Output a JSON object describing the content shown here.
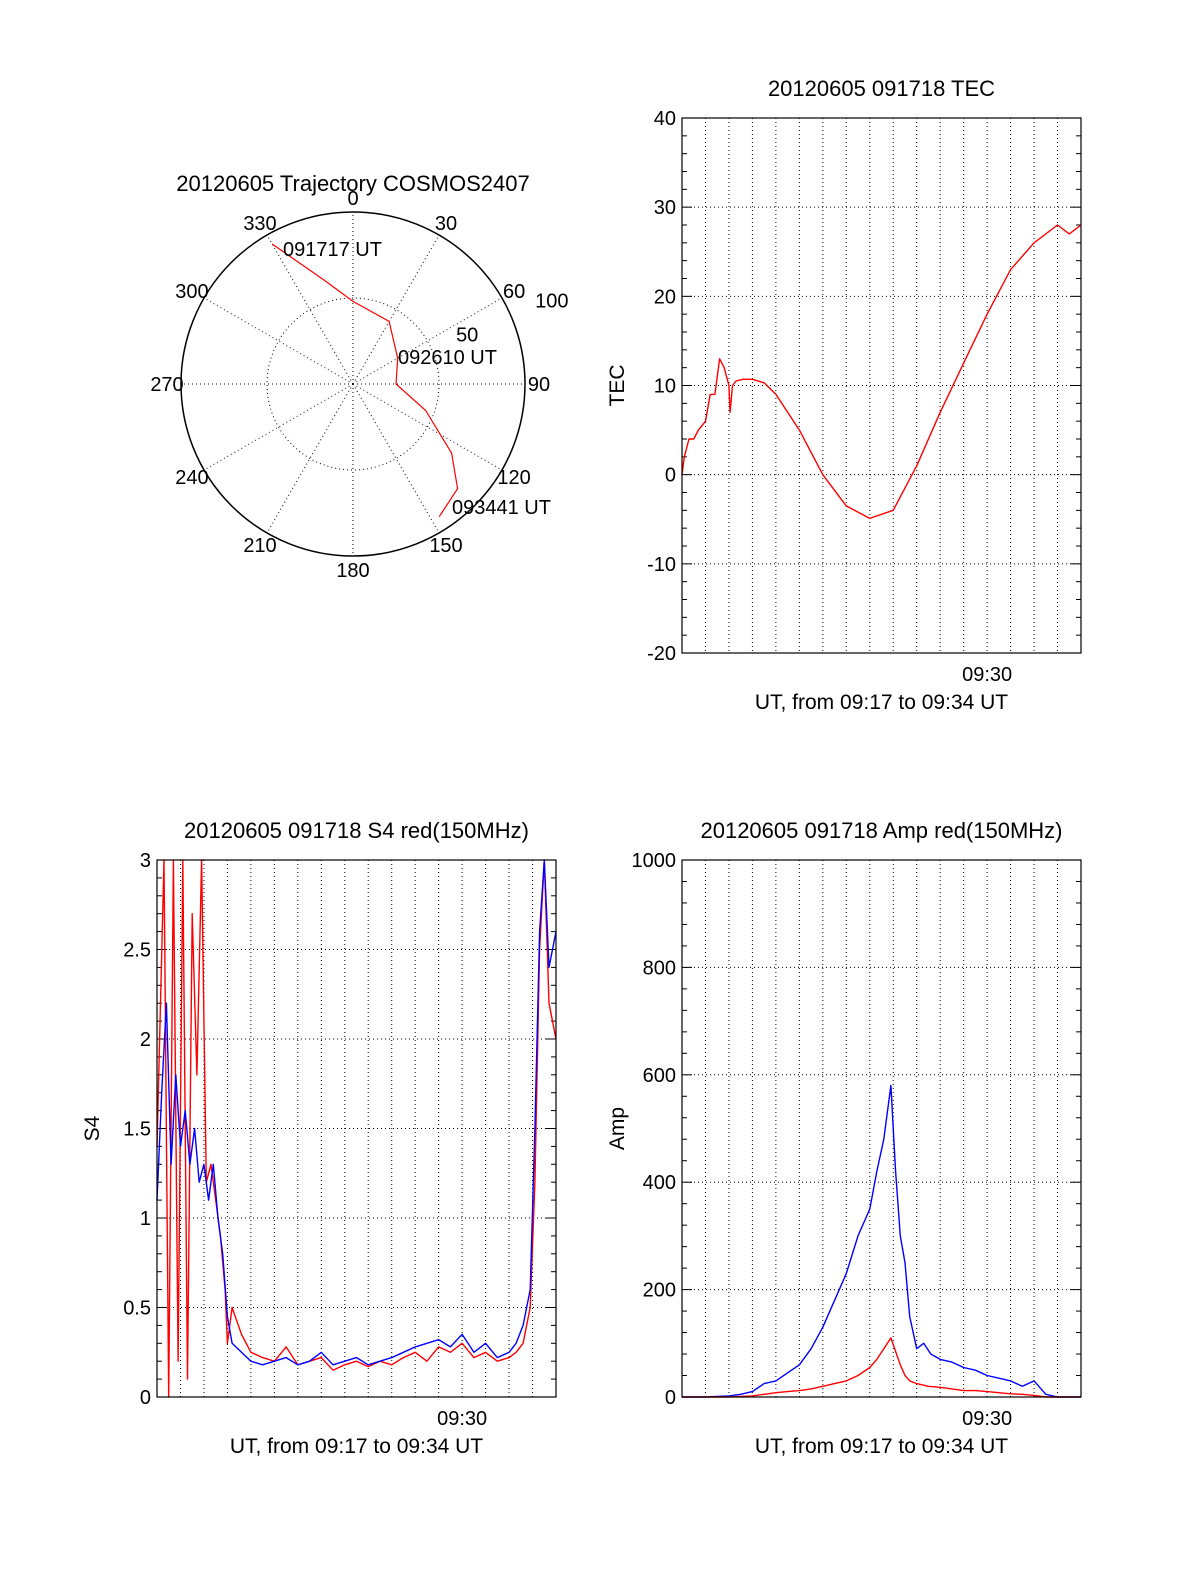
{
  "chart_data": [
    {
      "id": "trajectory",
      "type": "polar",
      "title": "20120605 Trajectory COSMOS2407",
      "angle_labels": [
        "0",
        "30",
        "60",
        "90",
        "120",
        "150",
        "180",
        "210",
        "240",
        "270",
        "300",
        "330"
      ],
      "ring_labels": [
        "50",
        "100"
      ],
      "annotations": [
        "091717 UT",
        "092610 UT",
        "093441 UT"
      ],
      "series": [
        {
          "color": "#ff0000",
          "points": [
            [
              330,
              94
            ],
            [
              345,
              62
            ],
            [
              0,
              48
            ],
            [
              30,
              42
            ],
            [
              60,
              30
            ],
            [
              90,
              25
            ],
            [
              110,
              45
            ],
            [
              125,
              70
            ],
            [
              135,
              86
            ],
            [
              147,
              92
            ]
          ]
        }
      ]
    },
    {
      "id": "tec",
      "type": "line",
      "title": "20120605 091718 TEC",
      "xlabel": "UT, from 09:17 to 09:34 UT",
      "ylabel": "TEC",
      "xlim": [
        0,
        17
      ],
      "ylim": [
        -20,
        40
      ],
      "yticks": [
        "-20",
        "-10",
        "0",
        "10",
        "20",
        "30",
        "40"
      ],
      "xtick_label": "09:30",
      "grid": true,
      "series": [
        {
          "color": "#ff0000",
          "x": [
            0,
            0.1,
            0.3,
            0.5,
            0.7,
            1.0,
            1.2,
            1.4,
            1.6,
            1.8,
            2.0,
            2.05,
            2.15,
            2.3,
            2.6,
            3.0,
            3.5,
            4.0,
            5.0,
            6.0,
            7.0,
            8.0,
            9.0,
            10.0,
            11.0,
            12.0,
            13.0,
            14.0,
            15.0,
            16.0,
            16.5,
            17.0
          ],
          "y": [
            0,
            2,
            4,
            4,
            5,
            6,
            9,
            9,
            13,
            12,
            10,
            7,
            10,
            10.5,
            10.7,
            10.7,
            10.3,
            9,
            5,
            0,
            -3.5,
            -4.9,
            -4,
            1,
            7,
            12.5,
            18,
            23,
            26,
            28,
            27,
            28
          ]
        }
      ]
    },
    {
      "id": "s4",
      "type": "line",
      "title": "20120605 091718 S4 red(150MHz)",
      "xlabel": "UT, from 09:17 to 09:34 UT",
      "ylabel": "S4",
      "xlim": [
        0,
        17
      ],
      "ylim": [
        0,
        3
      ],
      "yticks": [
        "0",
        "0.5",
        "1",
        "1.5",
        "2",
        "2.5",
        "3"
      ],
      "xtick_label": "09:30",
      "grid": true,
      "series": [
        {
          "color": "#ff0000",
          "x": [
            0,
            0.3,
            0.5,
            0.7,
            0.9,
            1.1,
            1.3,
            1.5,
            1.7,
            1.9,
            2.1,
            2.3,
            2.5,
            2.7,
            2.9,
            3.0,
            3.2,
            3.6,
            4.0,
            4.5,
            5.0,
            5.5,
            6.0,
            6.5,
            7.0,
            7.5,
            8.0,
            8.5,
            9.0,
            9.5,
            10.0,
            10.5,
            11.0,
            11.5,
            12.0,
            12.5,
            13.0,
            13.5,
            14.0,
            14.5,
            15.0,
            15.3,
            15.6,
            15.9,
            16.1,
            16.3,
            16.5,
            16.7,
            17.0
          ],
          "y": [
            1.4,
            3,
            0,
            3,
            0.2,
            3,
            0.1,
            2.7,
            1.8,
            3,
            1.2,
            1.3,
            1.1,
            0.9,
            0.6,
            0.3,
            0.5,
            0.35,
            0.25,
            0.22,
            0.2,
            0.28,
            0.18,
            0.2,
            0.22,
            0.15,
            0.18,
            0.2,
            0.17,
            0.2,
            0.18,
            0.22,
            0.25,
            0.2,
            0.28,
            0.25,
            0.3,
            0.22,
            0.25,
            0.2,
            0.22,
            0.25,
            0.3,
            0.5,
            1.2,
            2.5,
            3,
            2.2,
            2
          ]
        },
        {
          "color": "#0000ff",
          "x": [
            0,
            0.2,
            0.4,
            0.6,
            0.8,
            1.0,
            1.2,
            1.4,
            1.6,
            1.8,
            2.0,
            2.2,
            2.4,
            2.6,
            2.8,
            3.0,
            3.2,
            3.6,
            4.0,
            4.5,
            5.0,
            5.5,
            6.0,
            6.5,
            7.0,
            7.5,
            8.0,
            8.5,
            9.0,
            9.5,
            10.0,
            10.5,
            11.0,
            11.5,
            12.0,
            12.5,
            13.0,
            13.5,
            14.0,
            14.5,
            15.0,
            15.3,
            15.6,
            15.9,
            16.1,
            16.3,
            16.5,
            16.7,
            17.0
          ],
          "y": [
            1.1,
            1.7,
            2.2,
            1.3,
            1.8,
            1.4,
            1.6,
            1.3,
            1.5,
            1.2,
            1.3,
            1.1,
            1.3,
            1.0,
            0.8,
            0.45,
            0.3,
            0.25,
            0.2,
            0.18,
            0.2,
            0.22,
            0.18,
            0.2,
            0.25,
            0.18,
            0.2,
            0.22,
            0.18,
            0.2,
            0.22,
            0.25,
            0.28,
            0.3,
            0.32,
            0.28,
            0.35,
            0.25,
            0.3,
            0.22,
            0.25,
            0.3,
            0.4,
            0.6,
            1.5,
            2.6,
            3,
            2.4,
            2.6
          ]
        }
      ]
    },
    {
      "id": "amp",
      "type": "line",
      "title": "20120605 091718 Amp red(150MHz)",
      "xlabel": "UT, from 09:17 to 09:34 UT",
      "ylabel": "Amp",
      "xlim": [
        0,
        17
      ],
      "ylim": [
        0,
        1000
      ],
      "yticks": [
        "0",
        "200",
        "400",
        "600",
        "800",
        "1000"
      ],
      "xtick_label": "09:30",
      "grid": true,
      "series": [
        {
          "color": "#0000ff",
          "x": [
            0,
            1,
            2,
            2.5,
            3,
            3.5,
            4,
            4.5,
            5,
            5.5,
            6,
            6.5,
            7,
            7.5,
            8,
            8.3,
            8.6,
            8.9,
            9.1,
            9.3,
            9.5,
            9.7,
            10,
            10.3,
            10.6,
            11,
            11.5,
            12,
            12.5,
            13,
            13.5,
            14,
            14.5,
            15,
            15.5,
            16,
            17
          ],
          "y": [
            0,
            0,
            2,
            5,
            10,
            25,
            30,
            45,
            60,
            90,
            130,
            180,
            230,
            300,
            350,
            420,
            480,
            580,
            420,
            300,
            250,
            150,
            90,
            100,
            80,
            70,
            65,
            55,
            50,
            40,
            35,
            30,
            20,
            30,
            5,
            0,
            0
          ]
        },
        {
          "color": "#ff0000",
          "x": [
            0,
            2,
            3,
            3.5,
            4,
            4.5,
            5,
            5.5,
            6,
            6.5,
            7,
            7.5,
            8,
            8.3,
            8.6,
            8.9,
            9.1,
            9.3,
            9.5,
            9.7,
            10,
            10.5,
            11,
            11.5,
            12,
            12.5,
            13,
            13.5,
            14,
            14.5,
            15,
            15.5,
            17
          ],
          "y": [
            0,
            0,
            2,
            5,
            8,
            10,
            12,
            15,
            20,
            25,
            30,
            40,
            55,
            70,
            90,
            110,
            85,
            60,
            40,
            30,
            25,
            20,
            18,
            15,
            12,
            12,
            10,
            8,
            6,
            5,
            3,
            0,
            0
          ]
        }
      ]
    }
  ]
}
